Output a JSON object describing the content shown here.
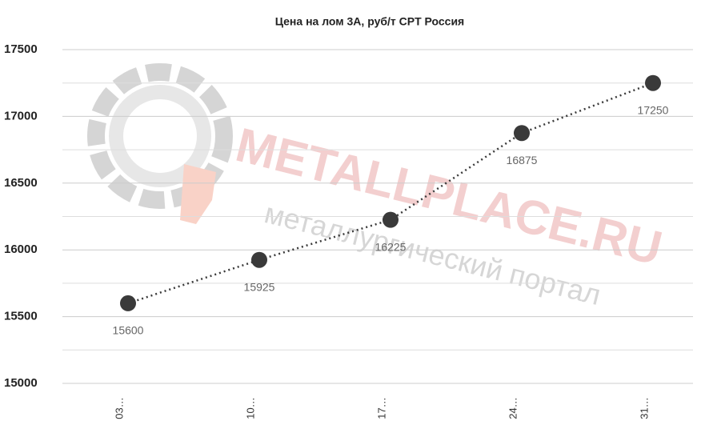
{
  "chart_data": {
    "type": "line",
    "title": "Цена на лом 3А, руб/т CPT Россия",
    "watermark": [
      "METALLPLACE.RU",
      "металлургический портал"
    ],
    "categories": [
      "03…",
      "10…",
      "17…",
      "24…",
      "31…"
    ],
    "series": [
      {
        "color": "#3a3a3a",
        "values": [
          15600,
          15925,
          16225,
          16875,
          17250
        ]
      }
    ],
    "ylim": [
      15000,
      17500
    ],
    "yticks": [
      15000,
      15500,
      16000,
      16500,
      17000,
      17500
    ],
    "minor_yticks": [
      15250,
      15750,
      16250,
      16750,
      17250
    ],
    "grid": true,
    "line_style": "dotted",
    "data_labels": true
  }
}
